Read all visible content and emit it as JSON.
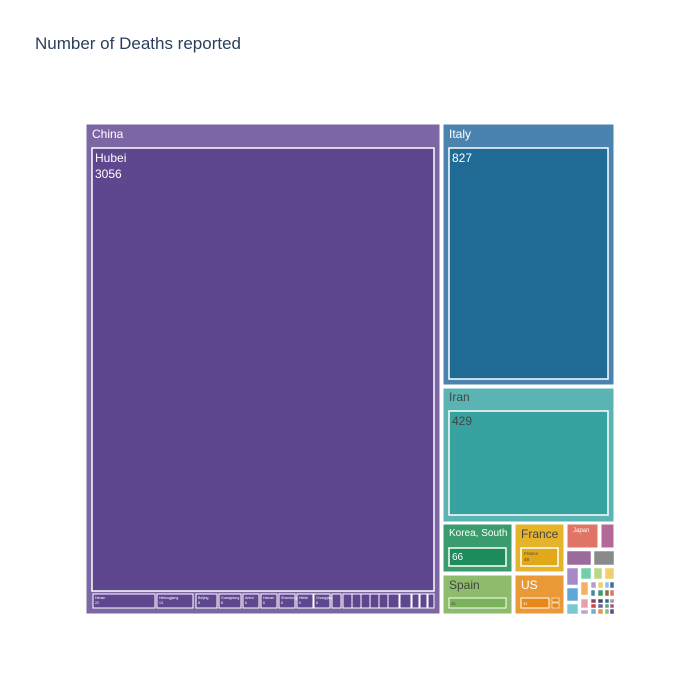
{
  "chart_data": {
    "type": "treemap",
    "title": "Number of Deaths reported",
    "colors": {
      "China": "#7c66a4",
      "Italy": "#4a83ad",
      "Iran": "#5ab4b4",
      "Korea, South": "#3a9b6c",
      "France": "#e6b42a",
      "Spain": "#8cbc6c",
      "US": "#e99a36",
      "Japan": "#e07465",
      "other": "#b36895"
    },
    "countries": [
      {
        "name": "China",
        "color": "#7c66a4",
        "inner_color": "#5e478f",
        "regions": [
          {
            "name": "Hubei",
            "value": 3056
          },
          {
            "name": "Henan",
            "value": 22
          },
          {
            "name": "Heilongjiang",
            "value": 13
          },
          {
            "name": "Beijing",
            "value": 8
          },
          {
            "name": "Guangdong",
            "value": 8
          },
          {
            "name": "Anhui",
            "value": 6
          },
          {
            "name": "Hainan",
            "value": 6
          },
          {
            "name": "Shandong",
            "value": 6
          },
          {
            "name": "Hebei",
            "value": 6
          },
          {
            "name": "Chongqing",
            "value": 6
          }
        ]
      },
      {
        "name": "Italy",
        "color": "#4a83ad",
        "inner_color": "#1f6b95",
        "value": 827,
        "show_region_name": false
      },
      {
        "name": "Iran",
        "color": "#5ab4b4",
        "inner_color": "#38a2a0",
        "value": 429,
        "show_region_name": false
      },
      {
        "name": "Korea, South",
        "color": "#3a9b6c",
        "inner_color": "#1d8b5c",
        "value": 66,
        "show_region_name": false
      },
      {
        "name": "France",
        "color": "#e6b42a",
        "inner_color": "#e1a81a",
        "value": 48,
        "region": "France"
      },
      {
        "name": "Spain",
        "color": "#8cbc6c",
        "inner_color": "#7ab35a",
        "value": 35
      },
      {
        "name": "US",
        "color": "#e99a36",
        "inner_color": "#e8881a",
        "value": 31
      },
      {
        "name": "Japan",
        "color": "#e07465",
        "value": 15
      }
    ]
  }
}
